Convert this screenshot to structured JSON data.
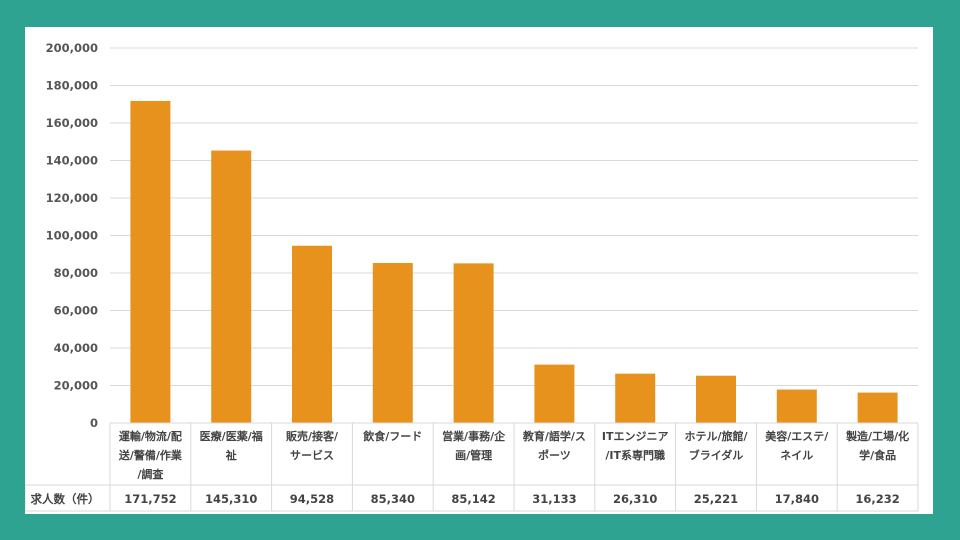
{
  "chart_data": {
    "type": "bar",
    "categories": [
      [
        "運輸/物流/配",
        "送/警備/作業",
        "/調査"
      ],
      [
        "医療/医薬/福",
        "祉"
      ],
      [
        "販売/接客/",
        "サービス"
      ],
      [
        "飲食/フード"
      ],
      [
        "営業/事務/企",
        "画/管理"
      ],
      [
        "教育/語学/ス",
        "ポーツ"
      ],
      [
        "ITエンジニア",
        "/IT系専門職"
      ],
      [
        "ホテル/旅館/",
        "ブライダル"
      ],
      [
        "美容/エステ/",
        "ネイル"
      ],
      [
        "製造/工場/化",
        "学/食品"
      ]
    ],
    "values": [
      171752,
      145310,
      94528,
      85340,
      85142,
      31133,
      26310,
      25221,
      17840,
      16232
    ],
    "value_labels": [
      "171,752",
      "145,310",
      "94,528",
      "85,340",
      "85,142",
      "31,133",
      "26,310",
      "25,221",
      "17,840",
      "16,232"
    ],
    "ylim": [
      0,
      200000
    ],
    "yticks": [
      "0",
      "20,000",
      "40,000",
      "60,000",
      "80,000",
      "100,000",
      "120,000",
      "140,000",
      "160,000",
      "180,000",
      "200,000"
    ],
    "table_row_label": "求人数（件）",
    "grid": true,
    "bar_color": "#e8921e"
  }
}
